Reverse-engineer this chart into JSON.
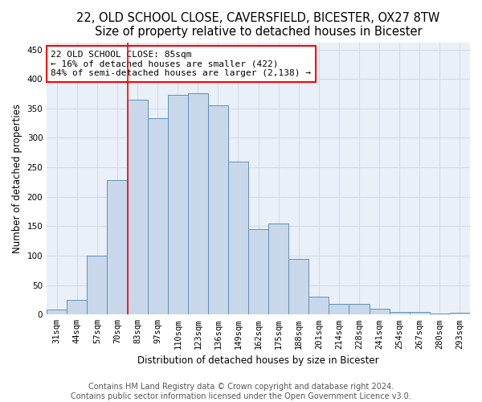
{
  "title1": "22, OLD SCHOOL CLOSE, CAVERSFIELD, BICESTER, OX27 8TW",
  "title2": "Size of property relative to detached houses in Bicester",
  "xlabel": "Distribution of detached houses by size in Bicester",
  "ylabel": "Number of detached properties",
  "categories": [
    "31sqm",
    "44sqm",
    "57sqm",
    "70sqm",
    "83sqm",
    "97sqm",
    "110sqm",
    "123sqm",
    "136sqm",
    "149sqm",
    "162sqm",
    "175sqm",
    "188sqm",
    "201sqm",
    "214sqm",
    "228sqm",
    "241sqm",
    "254sqm",
    "267sqm",
    "280sqm",
    "293sqm"
  ],
  "values": [
    8,
    25,
    100,
    228,
    365,
    333,
    373,
    375,
    355,
    260,
    145,
    155,
    95,
    30,
    18,
    18,
    10,
    4,
    5,
    2,
    3
  ],
  "bar_color": "#c8d8ea",
  "bar_edge_color": "#6090b8",
  "vline_color": "red",
  "vline_x_index": 4,
  "annotation_text": "22 OLD SCHOOL CLOSE: 85sqm\n← 16% of detached houses are smaller (422)\n84% of semi-detached houses are larger (2,138) →",
  "annotation_box_color": "white",
  "annotation_box_edge_color": "red",
  "footer1": "Contains HM Land Registry data © Crown copyright and database right 2024.",
  "footer2": "Contains public sector information licensed under the Open Government Licence v3.0.",
  "ylim": [
    0,
    462
  ],
  "yticks": [
    0,
    50,
    100,
    150,
    200,
    250,
    300,
    350,
    400,
    450
  ],
  "background_color": "#eaf0f8",
  "grid_color": "#d0dce8",
  "title1_fontsize": 10.5,
  "title2_fontsize": 9.5,
  "xlabel_fontsize": 8.5,
  "ylabel_fontsize": 8.5,
  "tick_fontsize": 7.5,
  "annotation_fontsize": 8,
  "footer_fontsize": 7
}
